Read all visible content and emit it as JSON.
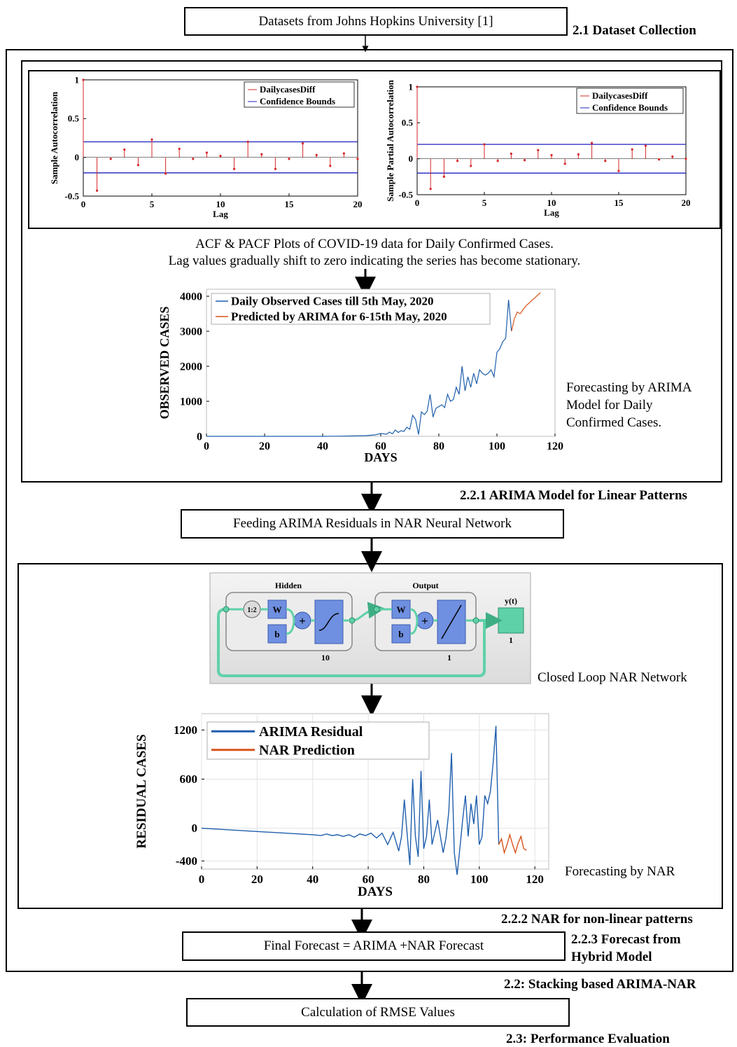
{
  "boxes": {
    "datasets": "Datasets from Johns Hopkins University [1]",
    "feeding": "Feeding ARIMA Residuals in NAR Neural Network",
    "final": "Final Forecast = ARIMA +NAR Forecast",
    "rmse": "Calculation of RMSE Values"
  },
  "labels": {
    "dataset_collection": "2.1 Dataset Collection",
    "arima_linear": "2.2.1 ARIMA Model for Linear Patterns",
    "nar_nonlinear": "2.2.2 NAR for non-linear patterns",
    "hybrid_1": "2.2.3 Forecast from",
    "hybrid_2": "Hybrid Model",
    "stacking": "2.2: Stacking based ARIMA-NAR",
    "performance": "2.3: Performance Evaluation"
  },
  "captions": {
    "acf_line1": "ACF & PACF Plots of COVID-19 data for Daily Confirmed Cases.",
    "acf_line2": "Lag values gradually shift to zero indicating the series has become stationary.",
    "arima_forecast_1": "Forecasting by ARIMA",
    "arima_forecast_2": "Model for Daily",
    "arima_forecast_3": "Confirmed Cases.",
    "closed_loop": "Closed Loop NAR Network",
    "nar_forecast": "Forecasting by NAR"
  },
  "narnet": {
    "hidden": "Hidden",
    "output": "Output",
    "delay": "1:2",
    "w": "W",
    "b": "b",
    "plus": "+",
    "hidden_size": "10",
    "output_size": "1",
    "yt": "y(t)",
    "y_size": "1"
  },
  "colors": {
    "stem": "#d62728",
    "bounds": "#1f1fbf",
    "observed": "#1f5fad",
    "predicted": "#d9541a",
    "net_blue": "#6f8fe0",
    "net_green": "#5fd1a8"
  },
  "chart_data": [
    {
      "id": "acf",
      "type": "stem",
      "xlabel": "Lag",
      "ylabel": "Sample Autocorrelation",
      "xlim": [
        0,
        20
      ],
      "ylim": [
        -0.5,
        1
      ],
      "xticks": [
        "0",
        "5",
        "10",
        "15",
        "20"
      ],
      "yticks": [
        "-0.5",
        "0",
        "0.5",
        "1"
      ],
      "legend": [
        "DailycasesDiff",
        "Confidence Bounds"
      ],
      "bounds": [
        0.2,
        -0.2
      ],
      "lags": [
        0,
        1,
        2,
        3,
        4,
        5,
        6,
        7,
        8,
        9,
        10,
        11,
        12,
        13,
        14,
        15,
        16,
        17,
        18,
        19,
        20
      ],
      "values": [
        1,
        -0.43,
        -0.02,
        0.1,
        -0.1,
        0.23,
        -0.21,
        0.11,
        -0.02,
        0.06,
        0.02,
        -0.15,
        0.2,
        0.04,
        -0.15,
        -0.02,
        0.18,
        0.03,
        -0.11,
        0.05,
        -0.02
      ]
    },
    {
      "id": "pacf",
      "type": "stem",
      "xlabel": "Lag",
      "ylabel": "Sample Partial Autocorrelation",
      "xlim": [
        0,
        20
      ],
      "ylim": [
        -0.5,
        1
      ],
      "xticks": [
        "0",
        "5",
        "10",
        "15",
        "20"
      ],
      "yticks": [
        "-0.5",
        "0",
        "0.5",
        "1"
      ],
      "legend": [
        "DailycasesDiff",
        "Confidence Bounds"
      ],
      "bounds": [
        0.2,
        -0.2
      ],
      "lags": [
        0,
        1,
        2,
        3,
        4,
        5,
        6,
        7,
        8,
        9,
        10,
        11,
        12,
        13,
        14,
        15,
        16,
        17,
        18,
        19,
        20
      ],
      "values": [
        1,
        -0.42,
        -0.25,
        -0.03,
        -0.1,
        0.2,
        -0.03,
        0.07,
        -0.02,
        0.12,
        0.05,
        -0.07,
        0.06,
        0.22,
        -0.03,
        -0.17,
        0.13,
        0.18,
        -0.01,
        0.03,
        0
      ]
    },
    {
      "id": "arima",
      "type": "line",
      "xlabel": "DAYS",
      "ylabel": "OBSERVED CASES",
      "xlim": [
        0,
        120
      ],
      "ylim": [
        0,
        4200
      ],
      "xticks": [
        "0",
        "20",
        "40",
        "60",
        "80",
        "100",
        "120"
      ],
      "yticks": [
        "0",
        "1000",
        "2000",
        "3000",
        "4000"
      ],
      "series": [
        {
          "name": "Daily Observed Cases till 5th May, 2020",
          "x": [
            0,
            10,
            20,
            30,
            40,
            45,
            50,
            55,
            58,
            60,
            62,
            63,
            64,
            65,
            66,
            67,
            68,
            69,
            70,
            71,
            72,
            73,
            74,
            75,
            76,
            77,
            78,
            79,
            80,
            81,
            82,
            83,
            84,
            85,
            86,
            87,
            88,
            89,
            90,
            91,
            92,
            93,
            94,
            95,
            96,
            97,
            98,
            99,
            100,
            101,
            102,
            103,
            104,
            105
          ],
          "y": [
            0,
            0,
            0,
            0,
            0,
            5,
            10,
            20,
            40,
            80,
            60,
            120,
            70,
            180,
            110,
            160,
            140,
            260,
            200,
            600,
            480,
            50,
            700,
            620,
            720,
            1200,
            550,
            800,
            850,
            900,
            820,
            1200,
            1000,
            1050,
            1400,
            1200,
            2000,
            1300,
            1700,
            1400,
            1800,
            1500,
            1900,
            1800,
            1750,
            1800,
            1900,
            1700,
            2400,
            2500,
            2700,
            2800,
            3900,
            3000
          ]
        },
        {
          "name": "Predicted by ARIMA for 6-15th May, 2020",
          "x": [
            105,
            106,
            107,
            108,
            109,
            110,
            111,
            112,
            113,
            114,
            115
          ],
          "y": [
            3000,
            3350,
            3550,
            3500,
            3620,
            3730,
            3800,
            3880,
            3950,
            4030,
            4100
          ]
        }
      ]
    },
    {
      "id": "nar",
      "type": "line",
      "xlabel": "DAYS",
      "ylabel": "RESIDUAL CASES",
      "xlim": [
        0,
        125
      ],
      "ylim": [
        -500,
        1400
      ],
      "xticks": [
        "0",
        "20",
        "40",
        "60",
        "80",
        "100",
        "120"
      ],
      "yticks": [
        "-400",
        "0",
        "600",
        "1200"
      ],
      "series": [
        {
          "name": "ARIMA Residual",
          "x": [
            0,
            10,
            20,
            30,
            40,
            43,
            45,
            47,
            49,
            51,
            53,
            55,
            57,
            59,
            61,
            63,
            65,
            67,
            69,
            71,
            72,
            73,
            74,
            75,
            76,
            77,
            78,
            79,
            80,
            81,
            82,
            83,
            84,
            85,
            86,
            87,
            88,
            89,
            90,
            91,
            92,
            93,
            94,
            95,
            96,
            97,
            98,
            99,
            100,
            101,
            102,
            103,
            104,
            105,
            106,
            107
          ],
          "y": [
            0,
            -20,
            -40,
            -60,
            -80,
            -90,
            -70,
            -90,
            -80,
            -100,
            -80,
            -110,
            -70,
            -90,
            -60,
            -120,
            -60,
            -200,
            -50,
            -280,
            -100,
            350,
            -60,
            -450,
            600,
            -100,
            -350,
            700,
            -250,
            -100,
            350,
            -200,
            -50,
            100,
            -100,
            -300,
            -120,
            200,
            920,
            -300,
            -570,
            -250,
            100,
            400,
            -100,
            300,
            50,
            400,
            -200,
            -100,
            400,
            300,
            450,
            800,
            1250,
            -200
          ]
        },
        {
          "name": "NAR Prediction",
          "x": [
            107,
            108,
            109,
            110,
            111,
            112,
            113,
            114,
            115,
            116,
            117
          ],
          "y": [
            -200,
            -130,
            -300,
            -200,
            -80,
            -200,
            -300,
            -180,
            -100,
            -250,
            -270
          ]
        }
      ]
    }
  ]
}
